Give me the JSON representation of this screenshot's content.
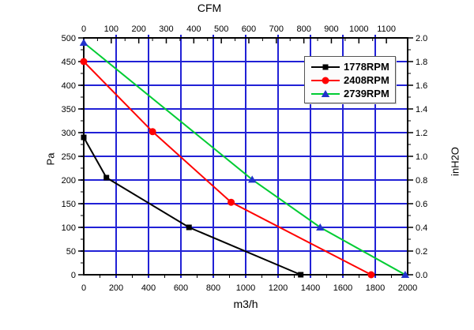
{
  "chart_data": {
    "type": "line",
    "title": "CFM",
    "x_bottom": {
      "label": "m3/h",
      "min": 0,
      "max": 2000,
      "major": 200,
      "minor": 100
    },
    "x_top": {
      "label": "CFM",
      "min": 0,
      "max": 1100,
      "major": 100,
      "minor": 50,
      "m3h_per_cfm": 1.699
    },
    "y_left": {
      "label": "Pa",
      "min": 0,
      "max": 500,
      "major": 50,
      "minor": 25
    },
    "y_right": {
      "label": "inH2O",
      "min": 0,
      "max": 2.0,
      "major": 0.2,
      "minor": 0.1,
      "decimals": 1
    },
    "grid": true,
    "grid_color": "#2121d6",
    "frame_color": "#000000",
    "legend_position": "top-right",
    "series": [
      {
        "name": "1778RPM",
        "color": "#000000",
        "marker": "square",
        "marker_color": "#000000",
        "points": [
          [
            0,
            290
          ],
          [
            140,
            205
          ],
          [
            650,
            100
          ],
          [
            1340,
            0
          ]
        ]
      },
      {
        "name": "2408RPM",
        "color": "#ff0000",
        "marker": "circle",
        "marker_color": "#ff0000",
        "points": [
          [
            0,
            450
          ],
          [
            425,
            302
          ],
          [
            910,
            153
          ],
          [
            1775,
            0
          ]
        ]
      },
      {
        "name": "2739RPM",
        "color": "#00cc33",
        "marker": "triangle",
        "marker_color": "#2233cc",
        "points": [
          [
            0,
            490
          ],
          [
            1040,
            201
          ],
          [
            1460,
            100
          ],
          [
            1985,
            0
          ]
        ]
      }
    ]
  }
}
